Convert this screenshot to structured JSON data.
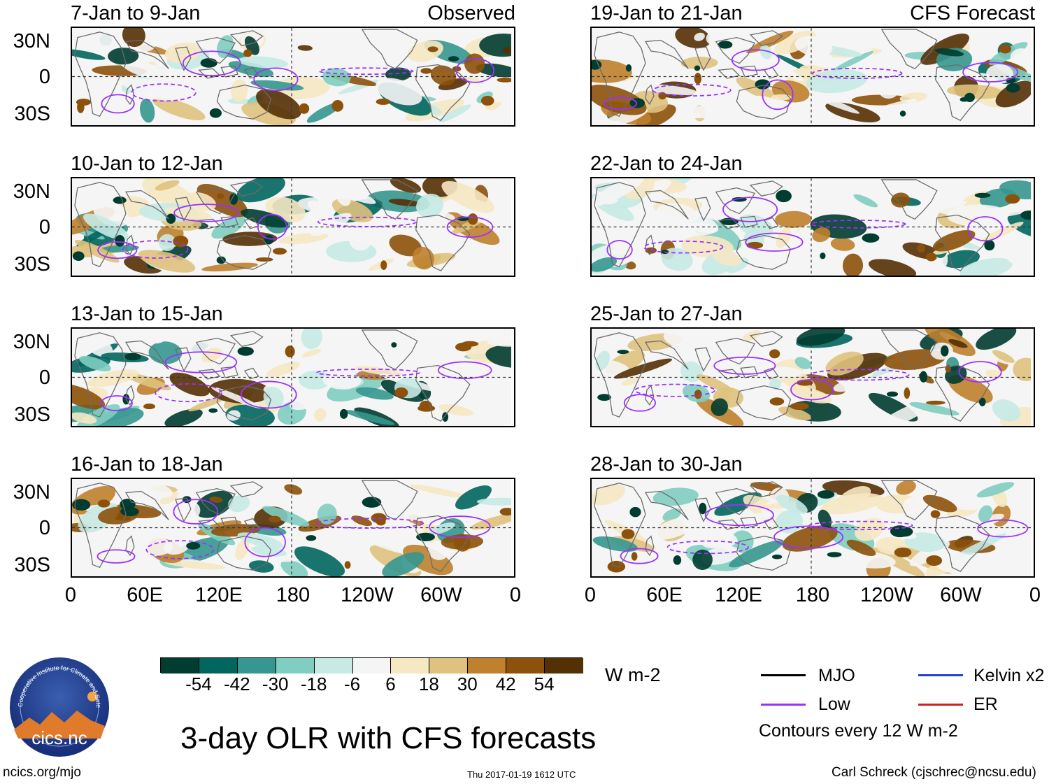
{
  "panels_left": [
    {
      "title": "7-Jan to 9-Jan",
      "tag": "Observed"
    },
    {
      "title": "10-Jan to 12-Jan",
      "tag": ""
    },
    {
      "title": "13-Jan to 15-Jan",
      "tag": ""
    },
    {
      "title": "16-Jan to 18-Jan",
      "tag": ""
    }
  ],
  "panels_right": [
    {
      "title": "19-Jan to 21-Jan",
      "tag": "CFS Forecast"
    },
    {
      "title": "22-Jan to 24-Jan",
      "tag": ""
    },
    {
      "title": "25-Jan to 27-Jan",
      "tag": ""
    },
    {
      "title": "28-Jan to 30-Jan",
      "tag": ""
    }
  ],
  "lat_labels": [
    "30N",
    "0",
    "30S"
  ],
  "lon_labels": [
    "0",
    "60E",
    "120E",
    "180",
    "120W",
    "60W",
    "0"
  ],
  "colorbar": {
    "colors": [
      "#003c30",
      "#01665e",
      "#35978f",
      "#80cdc1",
      "#c7eae5",
      "#f5f5f5",
      "#f6e8c3",
      "#dfc27d",
      "#bf812d",
      "#8c510a",
      "#543005"
    ],
    "ticks": [
      "-54",
      "-42",
      "-30",
      "-18",
      "-6",
      "6",
      "18",
      "30",
      "42",
      "54"
    ],
    "units": "W m-2"
  },
  "legend": {
    "mjo": {
      "label": "MJO",
      "color": "#000000"
    },
    "kelvin": {
      "label": "Kelvin x2",
      "color": "#2040d0"
    },
    "low": {
      "label": "Low",
      "color": "#9b30ff"
    },
    "er": {
      "label": "ER",
      "color": "#d02020"
    },
    "note": "Contours every 12 W m-2"
  },
  "logo": {
    "text": "cics.nc",
    "ring_text": "Cooperative Institute for Climate and Satellites"
  },
  "main_title": "3-day OLR with CFS forecasts",
  "footer": {
    "left": "ncics.org/mjo",
    "center": "Thu 2017-01-19 1612 UTC",
    "right": "Carl Schreck (cjschrec@ncsu.edu)"
  }
}
